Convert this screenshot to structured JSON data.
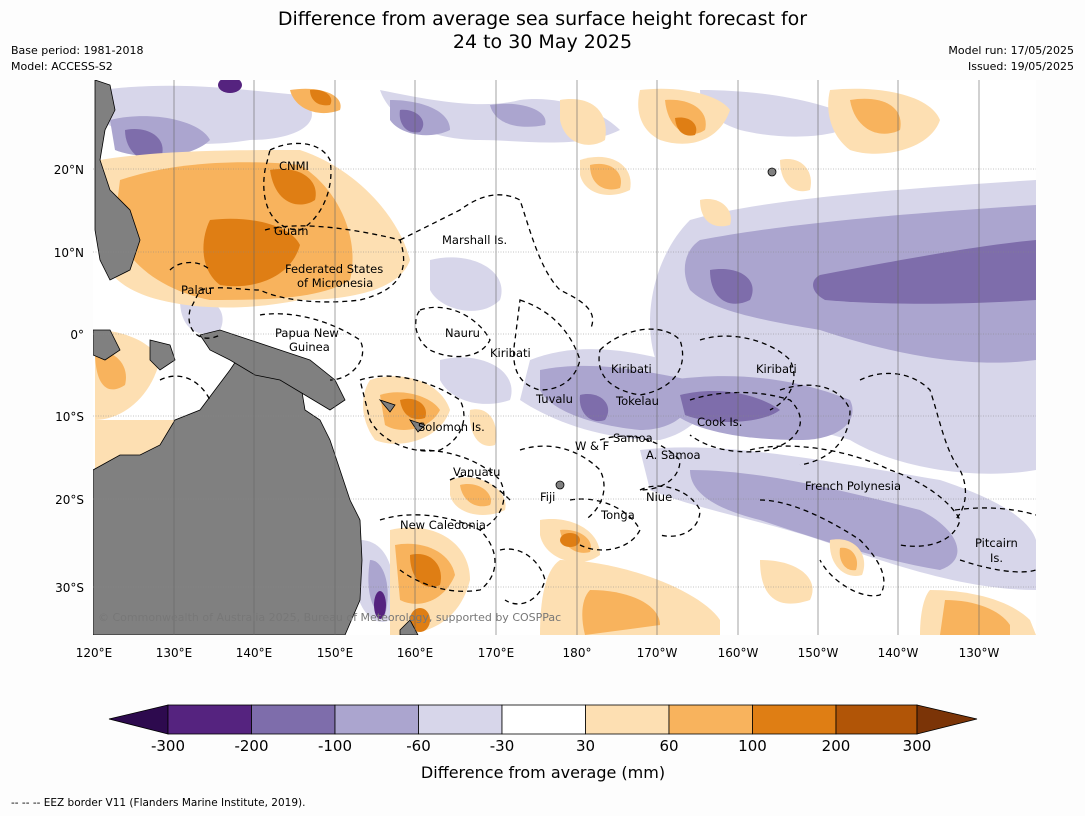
{
  "title": {
    "line1": "Difference from average sea surface height forecast for",
    "line2": "24 to 30 May 2025"
  },
  "meta": {
    "base_period": "Base period: 1981-2018",
    "model": "Model: ACCESS-S2",
    "model_run": "Model run: 17/05/2025",
    "issued": "Issued: 19/05/2025"
  },
  "axes": {
    "lon_ticks": [
      "120°E",
      "130°E",
      "140°E",
      "150°E",
      "160°E",
      "170°E",
      "180°",
      "170°W",
      "160°W",
      "150°W",
      "140°W",
      "130°W"
    ],
    "lat_ticks": [
      "20°N",
      "10°N",
      "0°",
      "10°S",
      "20°S",
      "30°S"
    ],
    "lon_range": [
      120,
      237
    ],
    "lat_range": [
      -36,
      31
    ]
  },
  "places": {
    "cnmi": "CNMI",
    "guam": "Guam",
    "marshall": "Marshall Is.",
    "fsm1": "Federated States",
    "fsm2": "of Micronesia",
    "palau": "Palau",
    "png1": "Papua New",
    "png2": "Guinea",
    "nauru": "Nauru",
    "kiribati_w": "Kiribati",
    "kiribati_c": "Kiribati",
    "kiribati_e": "Kiribati",
    "tuvalu": "Tuvalu",
    "tokelau": "Tokelau",
    "solomon": "Solomon Is.",
    "cook": "Cook Is.",
    "wf": "W & F",
    "samoa": "Samoa",
    "asamoa": "A. Samoa",
    "vanuatu": "Vanuatu",
    "fiji": "Fiji",
    "niue": "Niue",
    "fp": "French Polynesia",
    "tonga": "Tonga",
    "newcal": "New Caledonia",
    "pitcairn1": "Pitcairn",
    "pitcairn2": "Is."
  },
  "copyright": "© Commonwealth of Australia 2025, Bureau of Meteorology, supported by COSPPac",
  "colorbar": {
    "labels": [
      "-300",
      "-200",
      "-100",
      "-60",
      "-30",
      "30",
      "60",
      "100",
      "200",
      "300"
    ],
    "colors": [
      "#2d0a4e",
      "#55237f",
      "#7e6dab",
      "#aba5cf",
      "#d7d6ea",
      "#ffffff",
      "#fddfb2",
      "#f8b35d",
      "#df7e14",
      "#b15507",
      "#7b3407"
    ],
    "title": "Difference from average (mm)"
  },
  "colors": {
    "land": "#808080",
    "grid": "#888888"
  },
  "footnote": "--  --  -- EEZ border V11 (Flanders Marine Institute, 2019)."
}
